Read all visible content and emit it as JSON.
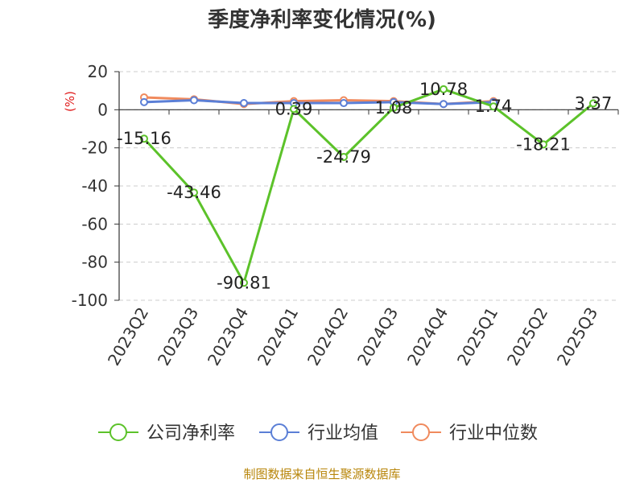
{
  "chart_data": {
    "type": "line",
    "title": "季度净利率变化情况(%)",
    "ylabel": "(%)",
    "ylim": [
      -100,
      20
    ],
    "yticks": [
      20,
      0,
      -20,
      -40,
      -60,
      -80,
      -100
    ],
    "grid": true,
    "legend_position": "bottom",
    "categories": [
      "2023Q2",
      "2023Q3",
      "2023Q4",
      "2024Q1",
      "2024Q2",
      "2024Q3",
      "2024Q4",
      "2025Q1",
      "2025Q2",
      "2025Q3"
    ],
    "series": [
      {
        "name": "公司净利率",
        "color": "#5cc22a",
        "values": [
          -15.16,
          -43.46,
          -90.81,
          0.39,
          -24.79,
          1.08,
          10.78,
          1.74,
          -18.21,
          3.37
        ],
        "labels": [
          "-15.16",
          "-43.46",
          "-90.81",
          "0.39",
          "-24.79",
          "1.08",
          "10.78",
          "1.74",
          "-18.21",
          "3.37"
        ]
      },
      {
        "name": "行业均值",
        "color": "#5b7fd6",
        "values": [
          4.0,
          5.0,
          3.5,
          3.5,
          3.5,
          4.0,
          3.0,
          4.0,
          null,
          null
        ]
      },
      {
        "name": "行业中位数",
        "color": "#f08a5d",
        "values": [
          6.5,
          5.5,
          3.0,
          4.5,
          5.0,
          4.5,
          3.0,
          4.5,
          null,
          null
        ]
      }
    ]
  },
  "source_text": "制图数据来自恒生聚源数据库"
}
